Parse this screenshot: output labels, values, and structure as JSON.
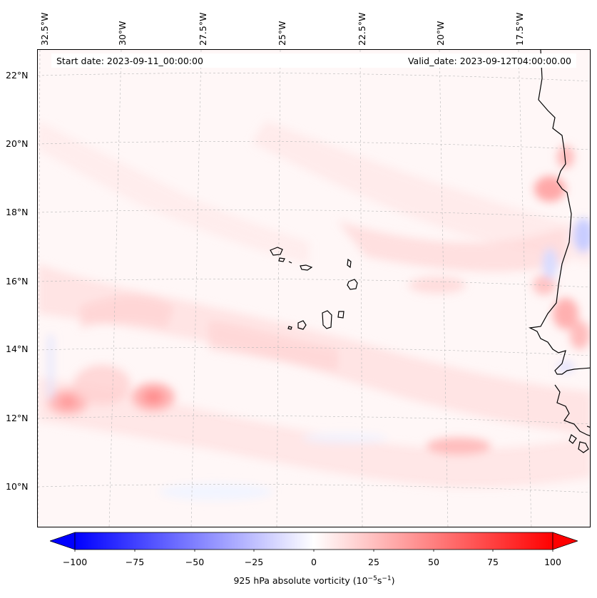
{
  "map": {
    "start_date": "Start date: 2023-09-11_00:00:00",
    "valid_date": "Valid_date: 2023-09-12T04:00:00.00",
    "longitude_labels": [
      "32.5°W",
      "30°W",
      "27.5°W",
      "25°W",
      "22.5°W",
      "20°W",
      "17.5°W"
    ],
    "latitude_labels": [
      "22°N",
      "20°N",
      "18°N",
      "16°N",
      "14°N",
      "12°N",
      "10°N"
    ],
    "field": "925 hPa absolute vorticity",
    "colormap": "bwr",
    "colors": {
      "negative": "#0000ff",
      "zero": "#ffffff",
      "positive": "#ff0000",
      "coast": "#000000",
      "grid": "#b0b0b0"
    }
  },
  "colorbar": {
    "ticks": [
      "−100",
      "−75",
      "−50",
      "−25",
      "0",
      "25",
      "50",
      "75",
      "100"
    ],
    "label_main": "925 hPa absolute vorticity (10",
    "label_exp1": "−5",
    "label_mid": "s",
    "label_exp2": "−1",
    "label_end": ")",
    "range": [
      -100,
      100
    ]
  }
}
